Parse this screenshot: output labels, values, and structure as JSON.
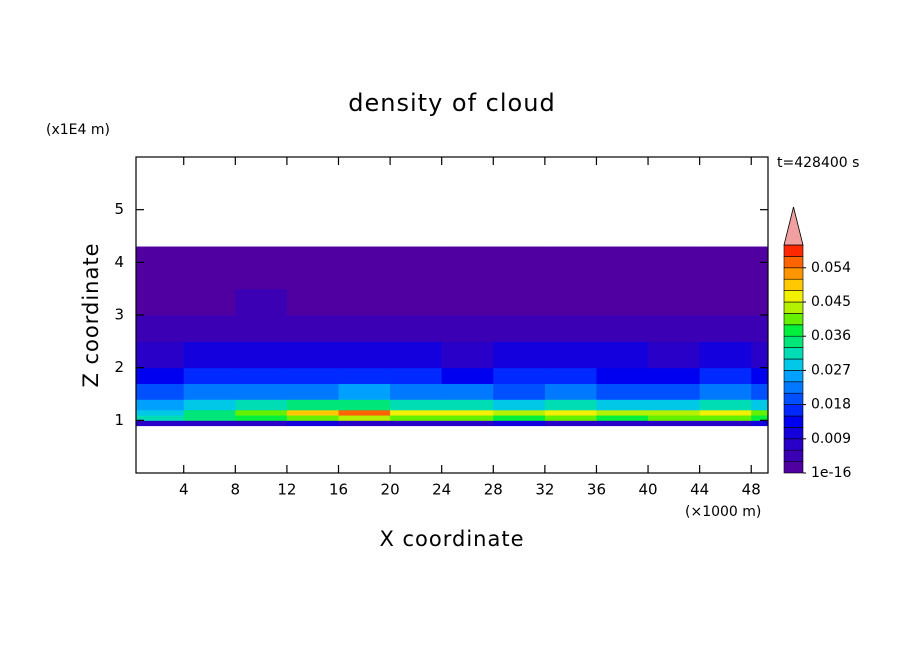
{
  "chart_data": {
    "type": "contour",
    "title": "density of cloud",
    "xlabel": "X coordinate",
    "ylabel": "Z coordinate",
    "x_unit": "(×1000 m)",
    "y_unit": "(x1E4 m)",
    "time_label": "t=428400 s",
    "xlim": [
      0.3,
      49.3
    ],
    "ylim": [
      0,
      6
    ],
    "xticks": [
      4,
      8,
      12,
      16,
      20,
      24,
      28,
      32,
      36,
      40,
      44,
      48
    ],
    "yticks": [
      1,
      2,
      3,
      4,
      5
    ],
    "x_edges": [
      0.3,
      4,
      8,
      12,
      16,
      20,
      24,
      28,
      32,
      36,
      40,
      44,
      48,
      49.3
    ],
    "z_edges": [
      0.9,
      1.0,
      1.1,
      1.2,
      1.4,
      1.7,
      2.0,
      2.5,
      3.0,
      3.5,
      4.3
    ],
    "z": [
      [
        0.008,
        0.009,
        0.008,
        0.01,
        0.009,
        0.008,
        0.009,
        0.01,
        0.008,
        0.009,
        0.008,
        0.009,
        0.01
      ],
      [
        0.032,
        0.036,
        0.038,
        0.042,
        0.043,
        0.04,
        0.041,
        0.039,
        0.04,
        0.038,
        0.041,
        0.04,
        0.039
      ],
      [
        0.03,
        0.034,
        0.04,
        0.05,
        0.054,
        0.048,
        0.046,
        0.044,
        0.047,
        0.045,
        0.043,
        0.046,
        0.042
      ],
      [
        0.026,
        0.03,
        0.032,
        0.034,
        0.036,
        0.033,
        0.031,
        0.03,
        0.032,
        0.029,
        0.03,
        0.031,
        0.028
      ],
      [
        0.02,
        0.022,
        0.023,
        0.024,
        0.025,
        0.023,
        0.022,
        0.021,
        0.022,
        0.021,
        0.02,
        0.022,
        0.019
      ],
      [
        0.014,
        0.016,
        0.017,
        0.016,
        0.018,
        0.016,
        0.015,
        0.016,
        0.017,
        0.015,
        0.014,
        0.016,
        0.014
      ],
      [
        0.009,
        0.01,
        0.011,
        0.01,
        0.011,
        0.01,
        0.009,
        0.01,
        0.011,
        0.01,
        0.009,
        0.01,
        0.009
      ],
      [
        0.005,
        0.006,
        0.006,
        0.005,
        0.006,
        0.005,
        0.006,
        0.005,
        0.006,
        0.005,
        0.005,
        0.006,
        0.005
      ],
      [
        0.002,
        0.003,
        0.004,
        0.003,
        0.003,
        0.002,
        0.003,
        0.002,
        0.003,
        0.002,
        0.003,
        0.002,
        0.002
      ],
      [
        0.001,
        0.001,
        0.001,
        0.001,
        0.001,
        0.001,
        0.001,
        0.001,
        0.001,
        0.001,
        0.001,
        0.001,
        0.001
      ]
    ],
    "clim": [
      1e-16,
      0.06
    ],
    "cticks": [
      1e-16,
      0.009,
      0.018,
      0.027,
      0.036,
      0.045,
      0.054
    ],
    "colors": [
      "#5000a0",
      "#3c00b4",
      "#2800c8",
      "#1400dc",
      "#0000f0",
      "#0028ff",
      "#0050ff",
      "#0078ff",
      "#00a0ff",
      "#00c8e6",
      "#00dcb4",
      "#00e678",
      "#00f03c",
      "#64f000",
      "#b4f000",
      "#f0f000",
      "#ffc800",
      "#ff9600",
      "#ff6400",
      "#ff2800"
    ],
    "over_color": "#f0a0a0"
  }
}
